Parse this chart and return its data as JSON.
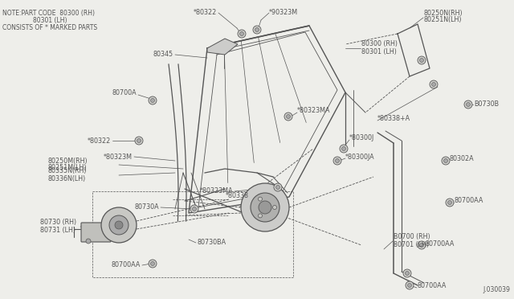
{
  "bg_color": "#eeeeea",
  "line_color": "#555555",
  "text_color": "#555555",
  "diagram_id": "J.030039",
  "note_line1": "NOTE:PART CODE  80300 (RH)",
  "note_line2": "                80301 (LH)",
  "note_line3": "CONSISTS OF * MARKED PARTS",
  "fs": 5.8,
  "fs_small": 5.2
}
